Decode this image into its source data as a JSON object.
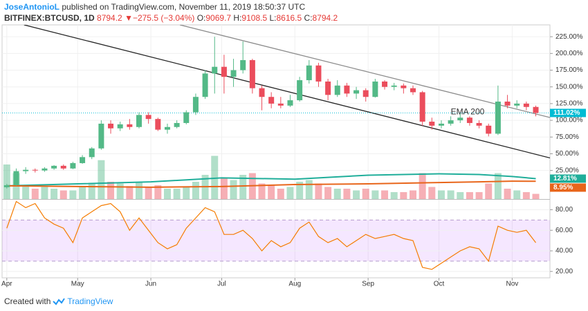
{
  "header": {
    "author": "JoseAntonioL",
    "published": "published on TradingView.com, November 11, 2019 18:50:37 UTC",
    "symbol": "BITFINEX:BTCUSD, 1D",
    "last": "8794.2",
    "arrow": "▼",
    "change": "−275.5 (−3.04%)",
    "o_label": "O:",
    "o": "9069.7",
    "h_label": "H:",
    "h": "9108.5",
    "l_label": "L:",
    "l": "8616.5",
    "c_label": "C:",
    "c": "8794.2"
  },
  "footer": {
    "created": "Created with",
    "brand": "TradingView"
  },
  "chart_data": {
    "type": "candlestick",
    "up_color": "#53b987",
    "down_color": "#eb4d5c",
    "xlim": [
      -2,
      230
    ],
    "xticks": [
      {
        "value": 0,
        "label": "Apr"
      },
      {
        "value": 30,
        "label": "May"
      },
      {
        "value": 61,
        "label": "Jun"
      },
      {
        "value": 91,
        "label": "Jul"
      },
      {
        "value": 122,
        "label": "Aug"
      },
      {
        "value": 153,
        "label": "Sep"
      },
      {
        "value": 183,
        "label": "Oct"
      },
      {
        "value": 214,
        "label": "Nov"
      }
    ],
    "ylim": [
      -17.7,
      242.7
    ],
    "yticks": [
      {
        "value": 25,
        "label": "25.00%"
      },
      {
        "value": 50,
        "label": "50.00%"
      },
      {
        "value": 75,
        "label": "75.00%"
      },
      {
        "value": 100,
        "label": "100.00%"
      },
      {
        "value": 125,
        "label": "125.00%"
      },
      {
        "value": 150,
        "label": "150.00%"
      },
      {
        "value": 175,
        "label": "175.00%"
      },
      {
        "value": 200,
        "label": "200.00%"
      },
      {
        "value": 225,
        "label": "225.00%"
      }
    ],
    "grid": true,
    "candles": {
      "x": [
        0,
        4,
        8,
        12,
        16,
        20,
        24,
        28,
        32,
        36,
        40,
        44,
        48,
        52,
        56,
        60,
        64,
        68,
        72,
        76,
        80,
        84,
        88,
        92,
        96,
        100,
        104,
        108,
        112,
        116,
        120,
        124,
        128,
        132,
        136,
        140,
        144,
        148,
        152,
        156,
        160,
        164,
        168,
        172,
        176,
        180,
        184,
        188,
        192,
        196,
        200,
        204,
        208,
        212,
        216,
        220,
        224
      ],
      "open": [
        0,
        3,
        24,
        26,
        25,
        28,
        32,
        28,
        36,
        45,
        58,
        95,
        88,
        94,
        90,
        108,
        102,
        86,
        90,
        96,
        112,
        135,
        170,
        180,
        165,
        175,
        190,
        148,
        135,
        125,
        122,
        130,
        160,
        182,
        158,
        138,
        152,
        140,
        145,
        135,
        158,
        150,
        152,
        148,
        142,
        98,
        92,
        95,
        100,
        104,
        96,
        92,
        80,
        128,
        122,
        125,
        120
      ],
      "high": [
        5,
        28,
        30,
        28,
        30,
        33,
        34,
        38,
        48,
        60,
        100,
        100,
        98,
        102,
        112,
        112,
        104,
        95,
        100,
        115,
        140,
        175,
        225,
        198,
        192,
        218,
        192,
        152,
        142,
        135,
        138,
        165,
        190,
        186,
        162,
        160,
        156,
        150,
        148,
        162,
        160,
        156,
        155,
        152,
        144,
        104,
        100,
        106,
        110,
        106,
        100,
        95,
        152,
        138,
        130,
        128,
        122
      ],
      "low": [
        -2,
        2,
        20,
        22,
        23,
        26,
        26,
        27,
        35,
        42,
        56,
        80,
        84,
        86,
        88,
        95,
        84,
        80,
        88,
        94,
        108,
        132,
        140,
        140,
        150,
        170,
        140,
        115,
        118,
        118,
        120,
        128,
        155,
        150,
        130,
        135,
        135,
        132,
        128,
        134,
        146,
        145,
        140,
        138,
        92,
        86,
        88,
        92,
        96,
        92,
        88,
        76,
        78,
        118,
        118,
        115,
        106
      ],
      "close": [
        3,
        24,
        26,
        25,
        28,
        32,
        28,
        36,
        45,
        58,
        95,
        88,
        94,
        90,
        108,
        102,
        86,
        90,
        96,
        112,
        135,
        170,
        180,
        165,
        175,
        190,
        148,
        135,
        125,
        122,
        130,
        160,
        182,
        158,
        138,
        152,
        140,
        145,
        135,
        158,
        150,
        152,
        148,
        142,
        98,
        92,
        95,
        100,
        104,
        96,
        92,
        80,
        128,
        122,
        125,
        120,
        111
      ]
    },
    "volume": {
      "vlim": [
        0,
        80
      ],
      "values": [
        40,
        30,
        15,
        12,
        14,
        12,
        10,
        10,
        14,
        18,
        45,
        20,
        18,
        15,
        20,
        14,
        16,
        12,
        12,
        14,
        20,
        28,
        50,
        25,
        22,
        28,
        30,
        18,
        16,
        12,
        14,
        20,
        22,
        18,
        14,
        12,
        12,
        10,
        12,
        10,
        10,
        8,
        8,
        10,
        30,
        14,
        10,
        10,
        8,
        8,
        8,
        18,
        30,
        12,
        10,
        8,
        6
      ]
    },
    "last_price": {
      "value": 111.02,
      "label": "111.02%",
      "color": "#00bcd4"
    },
    "lines": [
      {
        "color": "#1fae9a",
        "x": [
          0,
          30,
          61,
          91,
          122,
          153,
          183,
          200,
          214,
          224
        ],
        "values": [
          2,
          5,
          8,
          14,
          12,
          18,
          20,
          19,
          16,
          12.81
        ],
        "label": "12.81%"
      },
      {
        "color": "#e8651a",
        "x": [
          0,
          30,
          61,
          91,
          122,
          153,
          183,
          200,
          214,
          224
        ],
        "values": [
          2,
          1,
          0,
          1,
          4,
          5,
          7,
          8,
          9,
          8.95
        ],
        "label": "8.95%"
      }
    ],
    "trendlines": [
      {
        "color": "#222222",
        "x": [
          7.3,
          230
        ],
        "y": [
          242.7,
          43.8
        ]
      },
      {
        "color": "#8a8a8a",
        "x": [
          73.3,
          230
        ],
        "y": [
          242.7,
          104.2
        ]
      }
    ],
    "annotation": {
      "text": "EMA 200",
      "x": 188,
      "y": 112
    },
    "rsi": {
      "color": "#f57c00",
      "band": [
        30,
        70
      ],
      "ylim": [
        13.8,
        89.7
      ],
      "yticks": [
        {
          "value": 20,
          "label": "20.00"
        },
        {
          "value": 40,
          "label": "40.00"
        },
        {
          "value": 60,
          "label": "60.00"
        },
        {
          "value": 80,
          "label": "80.00"
        }
      ],
      "values": [
        62,
        88,
        82,
        86,
        72,
        66,
        62,
        48,
        72,
        78,
        84,
        86,
        78,
        60,
        72,
        60,
        48,
        42,
        46,
        62,
        72,
        82,
        78,
        56,
        56,
        60,
        52,
        40,
        50,
        44,
        48,
        62,
        68,
        54,
        48,
        52,
        44,
        50,
        56,
        52,
        54,
        56,
        52,
        50,
        24,
        22,
        28,
        34,
        40,
        44,
        42,
        30,
        64,
        60,
        58,
        60,
        48
      ]
    }
  }
}
